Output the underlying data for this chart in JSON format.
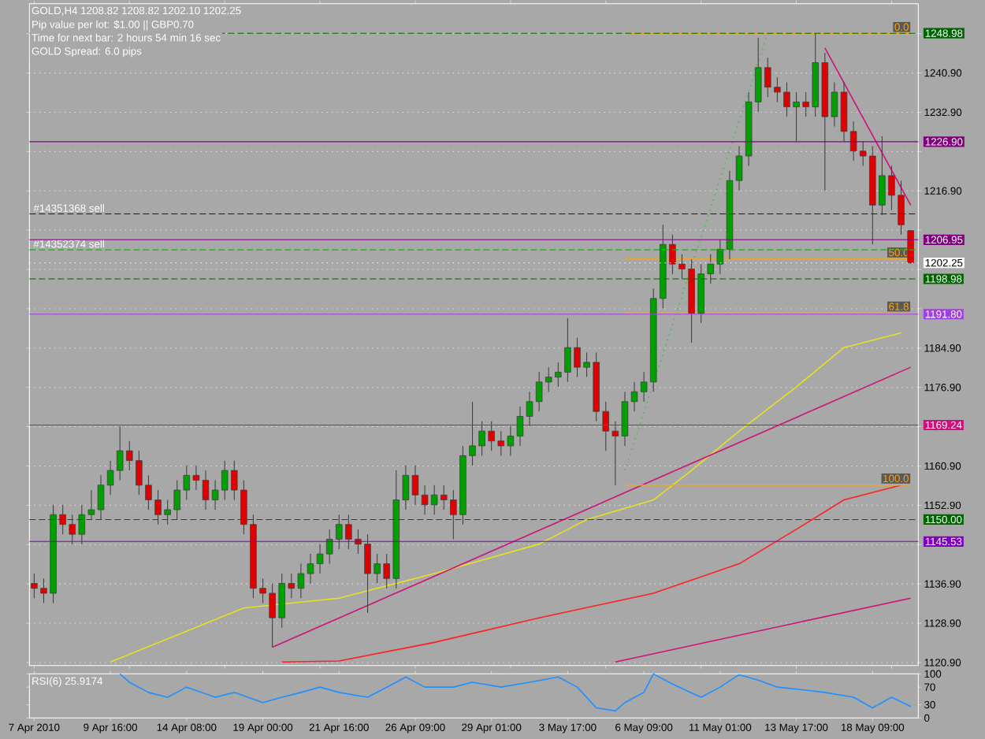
{
  "chart_data": [
    {
      "type": "candlestick",
      "title": "GOLD,H4 1208.82 1208.82 1202.10 1202.25",
      "annotations": [
        "Pip value per lot: $1.00 || GBP0.70",
        "Time for next bar: 2 hours 54 min 16 sec",
        "GOLD Spread: 6.0 pips",
        {
          "text": "#14351368 sell",
          "y": 1212.2
        },
        {
          "text": "#14352374 sell",
          "y": 1204.9
        }
      ],
      "categories": [
        null,
        null,
        null,
        null,
        null,
        null,
        null,
        null,
        null,
        null,
        null,
        null,
        null,
        null,
        null,
        null,
        null,
        null,
        null,
        null,
        null,
        null,
        null,
        null,
        null,
        null,
        null,
        null,
        null,
        null,
        null,
        null,
        null,
        null,
        null,
        null,
        null,
        null,
        null,
        null,
        null,
        null,
        null,
        null,
        null,
        null,
        null,
        null,
        null,
        null,
        null,
        null,
        null,
        null,
        null,
        null,
        null,
        null,
        null,
        null,
        null,
        null,
        null,
        null,
        null,
        null,
        null,
        null,
        null,
        null,
        null,
        null,
        null,
        null,
        null,
        null,
        null,
        null,
        null,
        null,
        null,
        null,
        null,
        null,
        null,
        null,
        null,
        null,
        null,
        null,
        null,
        null,
        null
      ],
      "ohlc": [
        [
          1137,
          1139,
          1134,
          1136
        ],
        [
          1136,
          1138,
          1133,
          1135
        ],
        [
          1135,
          1153,
          1133,
          1151
        ],
        [
          1151,
          1153,
          1147,
          1149
        ],
        [
          1149,
          1151,
          1145,
          1147
        ],
        [
          1147,
          1153,
          1145,
          1151
        ],
        [
          1151,
          1156,
          1150,
          1152
        ],
        [
          1152,
          1159,
          1150,
          1157
        ],
        [
          1157,
          1162,
          1155,
          1160
        ],
        [
          1160,
          1169,
          1158,
          1164
        ],
        [
          1164,
          1166,
          1160,
          1162
        ],
        [
          1162,
          1164,
          1155,
          1157
        ],
        [
          1157,
          1159,
          1152,
          1154
        ],
        [
          1154,
          1156,
          1149,
          1151
        ],
        [
          1151,
          1154,
          1149,
          1152
        ],
        [
          1152,
          1158,
          1150,
          1156
        ],
        [
          1156,
          1161,
          1154,
          1159
        ],
        [
          1159,
          1161,
          1156,
          1158
        ],
        [
          1158,
          1160,
          1152,
          1154
        ],
        [
          1154,
          1158,
          1152,
          1156
        ],
        [
          1156,
          1162,
          1154,
          1160
        ],
        [
          1160,
          1162,
          1154,
          1156
        ],
        [
          1156,
          1158,
          1147,
          1149
        ],
        [
          1149,
          1151,
          1134,
          1136
        ],
        [
          1136,
          1138,
          1133,
          1135
        ],
        [
          1135,
          1137,
          1124,
          1130
        ],
        [
          1130,
          1139,
          1128,
          1137
        ],
        [
          1137,
          1139,
          1134,
          1136
        ],
        [
          1136,
          1141,
          1134,
          1139
        ],
        [
          1139,
          1143,
          1137,
          1141
        ],
        [
          1141,
          1145,
          1139,
          1143
        ],
        [
          1143,
          1148,
          1141,
          1146
        ],
        [
          1146,
          1151,
          1144,
          1149
        ],
        [
          1149,
          1151,
          1144,
          1146
        ],
        [
          1146,
          1148,
          1143,
          1145
        ],
        [
          1145,
          1147,
          1131,
          1139
        ],
        [
          1139,
          1143,
          1137,
          1141
        ],
        [
          1141,
          1143,
          1136,
          1138
        ],
        [
          1138,
          1160,
          1136,
          1154
        ],
        [
          1154,
          1161,
          1152,
          1159
        ],
        [
          1159,
          1161,
          1153,
          1155
        ],
        [
          1155,
          1157,
          1151,
          1153
        ],
        [
          1153,
          1157,
          1151,
          1155
        ],
        [
          1155,
          1157,
          1152,
          1154
        ],
        [
          1154,
          1156,
          1146,
          1151
        ],
        [
          1151,
          1165,
          1149,
          1163
        ],
        [
          1163,
          1174,
          1161,
          1165
        ],
        [
          1165,
          1170,
          1163,
          1168
        ],
        [
          1168,
          1170,
          1164,
          1166
        ],
        [
          1166,
          1168,
          1163,
          1165
        ],
        [
          1165,
          1169,
          1163,
          1167
        ],
        [
          1167,
          1173,
          1165,
          1171
        ],
        [
          1171,
          1176,
          1169,
          1174
        ],
        [
          1174,
          1180,
          1172,
          1178
        ],
        [
          1178,
          1181,
          1176,
          1179
        ],
        [
          1179,
          1182,
          1177,
          1180
        ],
        [
          1180,
          1191,
          1178,
          1185
        ],
        [
          1185,
          1187,
          1179,
          1181
        ],
        [
          1181,
          1184,
          1179,
          1182
        ],
        [
          1182,
          1184,
          1170,
          1172
        ],
        [
          1172,
          1174,
          1164,
          1168
        ],
        [
          1168,
          1170,
          1157,
          1167
        ],
        [
          1167,
          1176,
          1165,
          1174
        ],
        [
          1174,
          1178,
          1172,
          1176
        ],
        [
          1176,
          1180,
          1174,
          1178
        ],
        [
          1178,
          1197,
          1176,
          1195
        ],
        [
          1195,
          1210,
          1193,
          1206
        ],
        [
          1206,
          1208,
          1200,
          1202
        ],
        [
          1202,
          1204,
          1199,
          1201
        ],
        [
          1201,
          1203,
          1186,
          1192
        ],
        [
          1192,
          1202,
          1190,
          1200
        ],
        [
          1200,
          1204,
          1198,
          1202
        ],
        [
          1202,
          1207,
          1200,
          1205
        ],
        [
          1205,
          1221,
          1203,
          1219
        ],
        [
          1219,
          1226,
          1217,
          1224
        ],
        [
          1224,
          1237,
          1222,
          1235
        ],
        [
          1235,
          1248,
          1233,
          1242
        ],
        [
          1242,
          1244,
          1236,
          1238
        ],
        [
          1238,
          1240,
          1235,
          1237
        ],
        [
          1237,
          1239,
          1232,
          1234
        ],
        [
          1234,
          1237,
          1227,
          1235
        ],
        [
          1235,
          1237,
          1232,
          1234
        ],
        [
          1234,
          1249,
          1232,
          1243
        ],
        [
          1243,
          1245,
          1217,
          1232
        ],
        [
          1232,
          1239,
          1230,
          1237
        ],
        [
          1237,
          1239,
          1227,
          1229
        ],
        [
          1229,
          1231,
          1223,
          1225
        ],
        [
          1225,
          1227,
          1222,
          1224
        ],
        [
          1224,
          1226,
          1206,
          1214
        ],
        [
          1214,
          1228,
          1212,
          1220
        ],
        [
          1220,
          1222,
          1213,
          1216
        ],
        [
          1216,
          1219,
          1208,
          1210
        ],
        [
          1208.82,
          1208.82,
          1202.1,
          1202.25
        ]
      ],
      "series": [
        {
          "type": "line",
          "values": [
            null,
            null,
            null,
            null,
            null,
            null,
            null,
            null,
            1121,
            null,
            null,
            null,
            null,
            null,
            null,
            null,
            null,
            null,
            null,
            null,
            null,
            null,
            1132,
            null,
            null,
            null,
            null,
            null,
            null,
            null,
            null,
            null,
            1134,
            null,
            null,
            null,
            null,
            null,
            null,
            null,
            null,
            null,
            1139,
            null,
            null,
            null,
            null,
            null,
            null,
            null,
            null,
            null,
            null,
            1145,
            null,
            null,
            null,
            null,
            1150,
            null,
            null,
            null,
            null,
            null,
            null,
            1154,
            null,
            null,
            null,
            1160,
            null,
            null,
            null,
            null,
            1168,
            null,
            null,
            null,
            null,
            null,
            1177,
            null,
            null,
            null,
            null,
            1185,
            null,
            null,
            null,
            null,
            null,
            1188,
            null
          ],
          "color": "#e8e020"
        },
        {
          "type": "line",
          "values": [
            null,
            null,
            null,
            null,
            null,
            null,
            null,
            null,
            null,
            null,
            null,
            null,
            null,
            null,
            null,
            null,
            null,
            null,
            null,
            null,
            null,
            null,
            null,
            null,
            null,
            null,
            1121,
            null,
            null,
            null,
            null,
            null,
            1121.2,
            null,
            null,
            null,
            null,
            null,
            null,
            null,
            null,
            null,
            1125,
            null,
            null,
            null,
            null,
            null,
            null,
            null,
            null,
            null,
            null,
            1130,
            null,
            null,
            null,
            null,
            null,
            null,
            null,
            null,
            null,
            null,
            null,
            1135,
            null,
            null,
            null,
            null,
            null,
            null,
            null,
            null,
            1141,
            null,
            null,
            null,
            null,
            null,
            1148,
            null,
            null,
            null,
            null,
            1154,
            null,
            null,
            null,
            null,
            null,
            1157,
            null
          ],
          "color": "#ff2020"
        },
        {
          "type": "line",
          "values": [
            null,
            null,
            null,
            null,
            null,
            null,
            null,
            null,
            null,
            null,
            null,
            null,
            null,
            null,
            null,
            null,
            null,
            null,
            null,
            null,
            null,
            null,
            null,
            null,
            null,
            1124,
            null,
            null,
            null,
            null,
            null,
            null,
            null,
            null,
            null,
            null,
            null,
            null,
            null,
            null,
            null,
            null,
            null,
            null,
            null,
            null,
            null,
            null,
            null,
            null,
            null,
            null,
            null,
            null,
            null,
            null,
            null,
            null,
            null,
            null,
            null,
            null,
            null,
            null,
            null,
            null,
            null,
            null,
            null,
            null,
            null,
            null,
            null,
            null,
            null,
            null,
            null,
            null,
            null,
            null,
            null,
            null,
            null,
            null,
            null,
            null,
            null,
            null,
            null,
            null,
            null,
            null,
            1181
          ],
          "color": "#d0107a"
        },
        {
          "type": "line",
          "values": [
            null,
            null,
            null,
            null,
            null,
            null,
            null,
            null,
            null,
            null,
            null,
            null,
            null,
            null,
            null,
            null,
            null,
            null,
            null,
            null,
            null,
            null,
            null,
            null,
            null,
            null,
            null,
            null,
            null,
            null,
            null,
            null,
            null,
            null,
            null,
            null,
            null,
            null,
            null,
            null,
            null,
            null,
            null,
            null,
            null,
            null,
            null,
            null,
            null,
            null,
            null,
            null,
            null,
            null,
            null,
            null,
            null,
            null,
            null,
            null,
            null,
            null,
            null,
            null,
            null,
            null,
            null,
            null,
            null,
            null,
            null,
            null,
            null,
            null,
            null,
            null,
            null,
            null,
            null,
            null,
            null,
            null,
            null,
            1246,
            null,
            null,
            null,
            null,
            null,
            null,
            null,
            null,
            1214
          ],
          "color": "#d0107a"
        },
        {
          "type": "line",
          "values": [
            null,
            null,
            null,
            null,
            null,
            null,
            null,
            null,
            null,
            null,
            null,
            null,
            null,
            null,
            null,
            null,
            null,
            null,
            null,
            null,
            null,
            null,
            null,
            null,
            null,
            null,
            null,
            null,
            null,
            null,
            null,
            null,
            null,
            null,
            null,
            null,
            null,
            null,
            null,
            null,
            null,
            null,
            null,
            null,
            null,
            null,
            null,
            null,
            null,
            null,
            null,
            null,
            null,
            null,
            null,
            null,
            null,
            null,
            null,
            null,
            null,
            1121,
            null,
            null,
            null,
            null,
            null,
            null,
            null,
            null,
            null,
            null,
            null,
            null,
            null,
            null,
            null,
            null,
            null,
            null,
            null,
            null,
            null,
            null,
            null,
            null,
            null,
            null,
            null,
            null,
            null,
            null,
            1134
          ],
          "color": "#d0107a"
        },
        {
          "type": "line",
          "values": [
            null,
            null,
            null,
            null,
            null,
            null,
            null,
            null,
            null,
            null,
            null,
            null,
            null,
            null,
            null,
            null,
            null,
            null,
            null,
            null,
            null,
            null,
            null,
            null,
            null,
            null,
            null,
            null,
            null,
            null,
            null,
            null,
            null,
            null,
            null,
            null,
            null,
            null,
            null,
            null,
            null,
            null,
            null,
            null,
            null,
            null,
            null,
            null,
            null,
            null,
            null,
            null,
            null,
            null,
            null,
            null,
            null,
            null,
            null,
            null,
            null,
            null,
            1160,
            null,
            null,
            null,
            null,
            null,
            null,
            null,
            null,
            null,
            null,
            null,
            null,
            null,
            null,
            1249,
            null,
            null,
            null,
            null,
            null,
            null,
            null,
            null,
            null,
            null,
            null,
            null,
            null,
            null,
            null
          ],
          "color": "#40c040",
          "line_style": "dotted"
        },
        {
          "type": "line",
          "name": "0.0",
          "values": [
            null,
            null,
            null,
            null,
            null,
            null,
            null,
            null,
            null,
            null,
            null,
            null,
            null,
            null,
            null,
            null,
            null,
            null,
            null,
            null,
            null,
            null,
            null,
            null,
            null,
            null,
            null,
            null,
            null,
            null,
            null,
            null,
            null,
            null,
            null,
            null,
            null,
            null,
            null,
            null,
            null,
            null,
            null,
            null,
            null,
            null,
            null,
            null,
            null,
            null,
            null,
            null,
            null,
            null,
            null,
            null,
            null,
            null,
            null,
            null,
            null,
            null,
            1248.9,
            null,
            null,
            null,
            null,
            null,
            null,
            null,
            null,
            null,
            null,
            null,
            null,
            null,
            null,
            null,
            null,
            null,
            null,
            null,
            null,
            null,
            null,
            null,
            null,
            null,
            null,
            null,
            null,
            null,
            1248.9
          ],
          "color": "#ffa500"
        },
        {
          "type": "line",
          "name": "50.0",
          "values": [
            null,
            null,
            null,
            null,
            null,
            null,
            null,
            null,
            null,
            null,
            null,
            null,
            null,
            null,
            null,
            null,
            null,
            null,
            null,
            null,
            null,
            null,
            null,
            null,
            null,
            null,
            null,
            null,
            null,
            null,
            null,
            null,
            null,
            null,
            null,
            null,
            null,
            null,
            null,
            null,
            null,
            null,
            null,
            null,
            null,
            null,
            null,
            null,
            null,
            null,
            null,
            null,
            null,
            null,
            null,
            null,
            null,
            null,
            null,
            null,
            null,
            null,
            1203,
            null,
            null,
            null,
            null,
            null,
            null,
            null,
            null,
            null,
            null,
            null,
            null,
            null,
            null,
            null,
            null,
            null,
            null,
            null,
            null,
            null,
            null,
            null,
            null,
            null,
            null,
            null,
            null,
            null,
            1203
          ],
          "color": "#ffa500"
        },
        {
          "type": "line",
          "name": "61.8",
          "values": [
            null,
            null,
            null,
            null,
            null,
            null,
            null,
            null,
            null,
            null,
            null,
            null,
            null,
            null,
            null,
            null,
            null,
            null,
            null,
            null,
            null,
            null,
            null,
            null,
            null,
            null,
            null,
            null,
            null,
            null,
            null,
            null,
            null,
            null,
            null,
            null,
            null,
            null,
            null,
            null,
            null,
            null,
            null,
            null,
            null,
            null,
            null,
            null,
            null,
            null,
            null,
            null,
            null,
            null,
            null,
            null,
            null,
            null,
            null,
            null,
            null,
            null,
            1192,
            null,
            null,
            null,
            null,
            null,
            null,
            null,
            null,
            null,
            null,
            null,
            null,
            null,
            null,
            null,
            null,
            null,
            null,
            null,
            null,
            null,
            null,
            null,
            null,
            null,
            null,
            null,
            null,
            null,
            1192
          ],
          "color": "#ffa500"
        },
        {
          "type": "line",
          "name": "100.0",
          "values": [
            null,
            null,
            null,
            null,
            null,
            null,
            null,
            null,
            null,
            null,
            null,
            null,
            null,
            null,
            null,
            null,
            null,
            null,
            null,
            null,
            null,
            null,
            null,
            null,
            null,
            null,
            null,
            null,
            null,
            null,
            null,
            null,
            null,
            null,
            null,
            null,
            null,
            null,
            null,
            null,
            null,
            null,
            null,
            null,
            null,
            null,
            null,
            null,
            null,
            null,
            null,
            null,
            null,
            null,
            null,
            null,
            null,
            null,
            null,
            null,
            null,
            null,
            1157,
            null,
            null,
            null,
            null,
            null,
            null,
            null,
            null,
            null,
            null,
            null,
            null,
            null,
            null,
            null,
            null,
            null,
            null,
            null,
            null,
            null,
            null,
            null,
            null,
            null,
            null,
            null,
            null,
            null,
            1157
          ],
          "color": "#ffa500"
        }
      ],
      "ylim": [
        1120.3,
        1255
      ],
      "yticks": [
        {
          "value": 1120.9,
          "label": "1120.90"
        },
        {
          "value": 1128.9,
          "label": "1128.90"
        },
        {
          "value": 1136.9,
          "label": "1136.90"
        },
        {
          "value": 1144.9,
          "label": null
        },
        {
          "value": 1152.9,
          "label": "1152.90"
        },
        {
          "value": 1160.9,
          "label": "1160.90"
        },
        {
          "value": 1168.9,
          "label": null
        },
        {
          "value": 1176.9,
          "label": "1176.90"
        },
        {
          "value": 1184.9,
          "label": "1184.90"
        },
        {
          "value": 1192.9,
          "label": null
        },
        {
          "value": 1200.9,
          "label": null
        },
        {
          "value": 1208.9,
          "label": null
        },
        {
          "value": 1216.9,
          "label": "1216.90"
        },
        {
          "value": 1224.9,
          "label": null
        },
        {
          "value": 1232.9,
          "label": "1232.90"
        },
        {
          "value": 1240.9,
          "label": "1240.90"
        },
        {
          "value": 1248.9,
          "label": null
        }
      ],
      "ref_lines": [
        {
          "axis": "y",
          "value": 1248.98,
          "label": "1248.98",
          "color": "#006400",
          "line_style": "dashed"
        },
        {
          "axis": "y",
          "value": 1226.9,
          "label": "1226.90",
          "color": "#800080",
          "line_style": "solid"
        },
        {
          "axis": "y",
          "value": 1212.2,
          "color": "#0000ff",
          "line_style": "dashed"
        },
        {
          "axis": "y",
          "value": 1206.95,
          "label": "1206.95",
          "color": "#800080",
          "line_style": "solid"
        },
        {
          "axis": "y",
          "value": 1204.9,
          "color": "#00c000",
          "line_style": "dashed"
        },
        {
          "axis": "y",
          "value": 1202.25,
          "label": "1202.25",
          "color": "#ffffff",
          "line_style": "dotted"
        },
        {
          "axis": "y",
          "value": 1198.98,
          "label": "1198.98",
          "color": "#006400",
          "line_style": "dashed"
        },
        {
          "axis": "y",
          "value": 1191.8,
          "label": "1191.80",
          "color": "#a040e0",
          "line_style": "solid"
        },
        {
          "axis": "y",
          "value": 1169.24,
          "label": "1169.24",
          "color": "#d0107a",
          "line_style": "solid"
        },
        {
          "axis": "y",
          "value": 1150,
          "label": "1150.00",
          "color": "#006400",
          "line_style": "dashed"
        },
        {
          "axis": "y",
          "value": 1145.53,
          "label": "1145.53",
          "color": "#8000c0",
          "line_style": "solid"
        }
      ],
      "grid": "y",
      "tick_labels": "y"
    },
    {
      "type": "line",
      "title": "RSI(6) 25.9174",
      "categories": [
        "7 Apr 2010",
        null,
        null,
        null,
        null,
        null,
        null,
        null,
        "9 Apr 16:00",
        null,
        null,
        null,
        null,
        null,
        null,
        null,
        "14 Apr 08:00",
        null,
        null,
        null,
        null,
        null,
        null,
        null,
        "19 Apr 00:00",
        null,
        null,
        null,
        null,
        null,
        null,
        null,
        "21 Apr 16:00",
        null,
        null,
        null,
        null,
        null,
        null,
        null,
        "26 Apr 09:00",
        null,
        null,
        null,
        null,
        null,
        null,
        null,
        "29 Apr 01:00",
        null,
        null,
        null,
        null,
        null,
        null,
        null,
        "3 May 17:00",
        null,
        null,
        null,
        null,
        null,
        null,
        null,
        "6 May 09:00",
        null,
        null,
        null,
        null,
        null,
        null,
        null,
        "11 May 01:00",
        null,
        null,
        null,
        null,
        null,
        null,
        null,
        "13 May 17:00",
        null,
        null,
        null,
        null,
        null,
        null,
        null,
        "18 May 09:00",
        null,
        null,
        null,
        null
      ],
      "series": [
        {
          "values": [
            null,
            null,
            null,
            null,
            null,
            null,
            null,
            null,
            null,
            100,
            81,
            null,
            58,
            null,
            47,
            null,
            70,
            null,
            null,
            47,
            null,
            58,
            null,
            null,
            35,
            null,
            47,
            null,
            58,
            null,
            70,
            null,
            58,
            null,
            null,
            47,
            null,
            null,
            81,
            93,
            null,
            70,
            null,
            null,
            70,
            null,
            81,
            null,
            null,
            70,
            null,
            null,
            81,
            null,
            null,
            93,
            null,
            70,
            null,
            23,
            null,
            16,
            35,
            null,
            58,
            100,
            null,
            77,
            null,
            null,
            47,
            null,
            70,
            null,
            98,
            null,
            86,
            null,
            70,
            null,
            null,
            63,
            null,
            58,
            null,
            null,
            47,
            null,
            23,
            null,
            47,
            null,
            26
          ],
          "color": "#1e90ff"
        }
      ],
      "ylim": [
        0,
        100
      ],
      "yticks": [
        0,
        30,
        70,
        100
      ]
    }
  ]
}
